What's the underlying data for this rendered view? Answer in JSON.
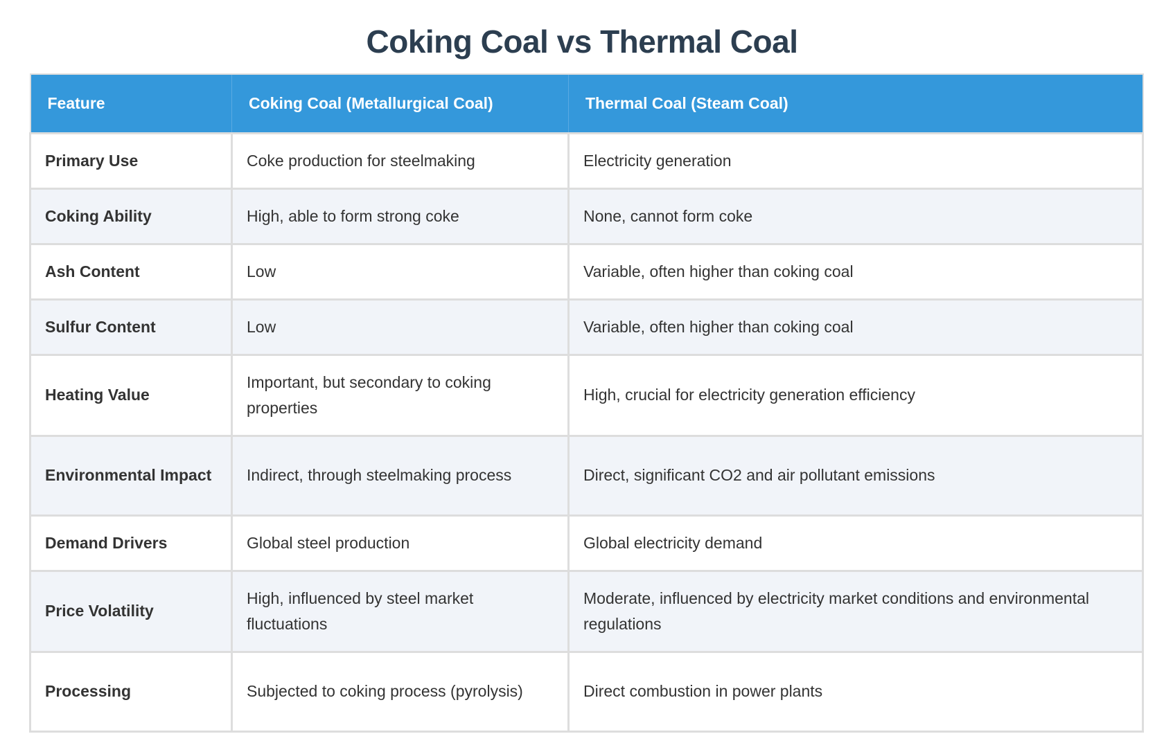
{
  "title": "Coking Coal vs Thermal Coal",
  "colors": {
    "title": "#2c3e50",
    "header_bg": "#3498db",
    "header_text": "#ffffff",
    "row_alt_bg": "#f1f4f9",
    "border": "#dddddd",
    "body_text": "#333333"
  },
  "table": {
    "headers": [
      "Feature",
      "Coking Coal (Metallurgical Coal)",
      "Thermal Coal (Steam Coal)"
    ],
    "rows": [
      {
        "feature": "Primary Use",
        "coking": "Coke production for steelmaking",
        "thermal": "Electricity generation"
      },
      {
        "feature": "Coking Ability",
        "coking": "High, able to form strong coke",
        "thermal": "None, cannot form coke"
      },
      {
        "feature": "Ash Content",
        "coking": "Low",
        "thermal": "Variable, often higher than coking coal"
      },
      {
        "feature": "Sulfur Content",
        "coking": "Low",
        "thermal": "Variable, often higher than coking coal"
      },
      {
        "feature": "Heating Value",
        "coking": "Important, but secondary to coking properties",
        "thermal": "High, crucial for electricity generation efficiency"
      },
      {
        "feature": "Environmental Impact",
        "coking": "Indirect, through steelmaking process",
        "thermal": "Direct, significant CO2 and air pollutant emissions"
      },
      {
        "feature": "Demand Drivers",
        "coking": "Global steel production",
        "thermal": "Global electricity demand"
      },
      {
        "feature": "Price Volatility",
        "coking": "High, influenced by steel market fluctuations",
        "thermal": "Moderate, influenced by electricity market conditions and environmental regulations"
      },
      {
        "feature": "Processing",
        "coking": "Subjected to coking process (pyrolysis)",
        "thermal": "Direct combustion in power plants"
      }
    ]
  }
}
